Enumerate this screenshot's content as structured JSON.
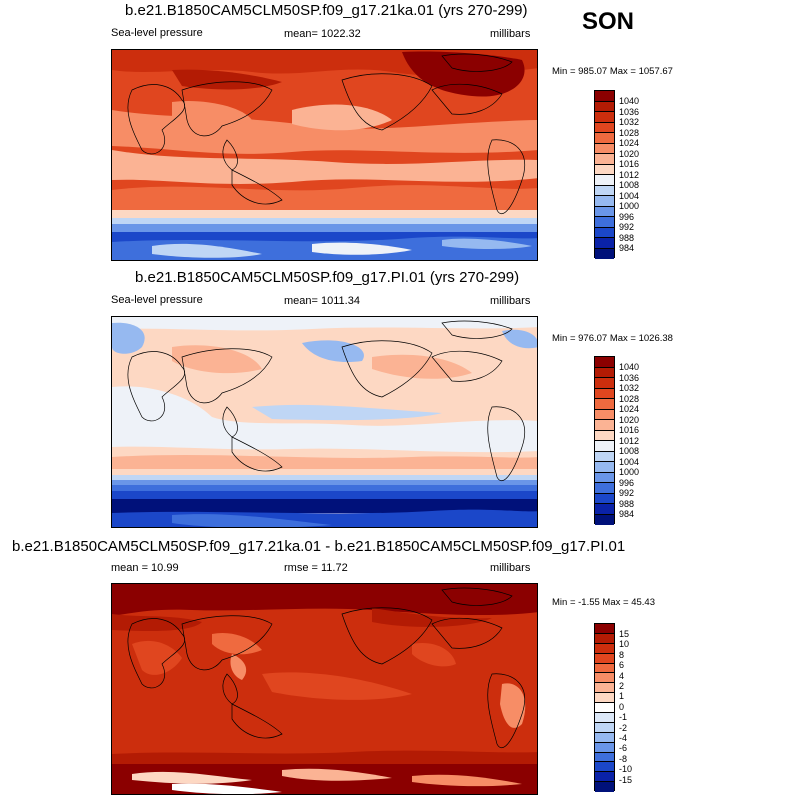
{
  "season": "SON",
  "panels": [
    {
      "title": "b.e21.B1850CAM5CLM50SP.f09_g17.21ka.01 (yrs 270-299)",
      "left_label": "Sea-level pressure",
      "center_label": "mean= 1022.32",
      "right_label": "millibars",
      "minmax": "Min = 985.07 Max = 1057.67",
      "colorbar_labels": [
        "1040",
        "1036",
        "1032",
        "1028",
        "1024",
        "1020",
        "1016",
        "1012",
        "1008",
        "1004",
        "1000",
        "996",
        "992",
        "988",
        "984"
      ]
    },
    {
      "title": "b.e21.B1850CAM5CLM50SP.f09_g17.PI.01 (yrs 270-299)",
      "left_label": "Sea-level pressure",
      "center_label": "mean= 1011.34",
      "right_label": "millibars",
      "minmax": "Min = 976.07 Max = 1026.38",
      "colorbar_labels": [
        "1040",
        "1036",
        "1032",
        "1028",
        "1024",
        "1020",
        "1016",
        "1012",
        "1008",
        "1004",
        "1000",
        "996",
        "992",
        "988",
        "984"
      ]
    },
    {
      "title": "b.e21.B1850CAM5CLM50SP.f09_g17.21ka.01 - b.e21.B1850CAM5CLM50SP.f09_g17.PI.01",
      "left_label": "mean =  10.99",
      "center_label": "rmse =  11.72",
      "right_label": "millibars",
      "minmax": "Min =  -1.55 Max =  45.43",
      "colorbar_labels": [
        "15",
        "10",
        "8",
        "6",
        "4",
        "2",
        "1",
        "0",
        "-1",
        "-2",
        "-4",
        "-6",
        "-8",
        "-10",
        "-15"
      ]
    }
  ],
  "colors": {
    "abs_scale": [
      "#8b0000",
      "#b31b04",
      "#cc2e0d",
      "#e0461f",
      "#ef6a3f",
      "#f78d66",
      "#fbb394",
      "#fdd8c3",
      "#eef2f8",
      "#bfd6f5",
      "#96b9f0",
      "#6a96e8",
      "#3e6fdc",
      "#1b47c9",
      "#0a22a8",
      "#00117a"
    ],
    "diff_scale": [
      "#8b0000",
      "#b31b04",
      "#cc2e0d",
      "#e0461f",
      "#ef6a3f",
      "#f78d66",
      "#fbb394",
      "#fdd8c3",
      "#ffffff",
      "#dce8f8",
      "#bfd6f5",
      "#96b9f0",
      "#6a96e8",
      "#3e6fdc",
      "#1b47c9",
      "#0a22a8",
      "#00117a"
    ]
  }
}
